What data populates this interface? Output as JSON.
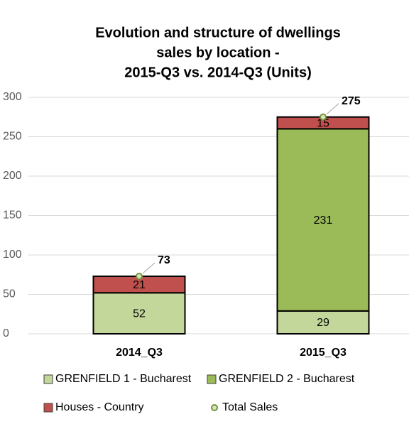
{
  "chart_data": {
    "type": "stacked_bar",
    "title": [
      "Evolution and structure of dwellings",
      "sales by location -",
      "2015-Q3 vs. 2014-Q3 (Units)"
    ],
    "categories": [
      "2014_Q3",
      "2015_Q3"
    ],
    "series": [
      {
        "name": "GRENFIELD 1 - Bucharest",
        "color": "#c4d79b",
        "values": [
          52,
          29
        ]
      },
      {
        "name": "GRENFIELD 2 - Bucharest",
        "color": "#9bbb59",
        "values": [
          null,
          231
        ]
      },
      {
        "name": "Houses - Country",
        "color": "#c0504d",
        "values": [
          21,
          15
        ]
      },
      {
        "name": "Total Sales",
        "color": "#77933c",
        "kind": "marker",
        "values": [
          73,
          275
        ]
      }
    ],
    "ylim": [
      0,
      300
    ],
    "yticks": [
      0,
      50,
      100,
      150,
      200,
      250,
      300
    ],
    "grid": true
  }
}
